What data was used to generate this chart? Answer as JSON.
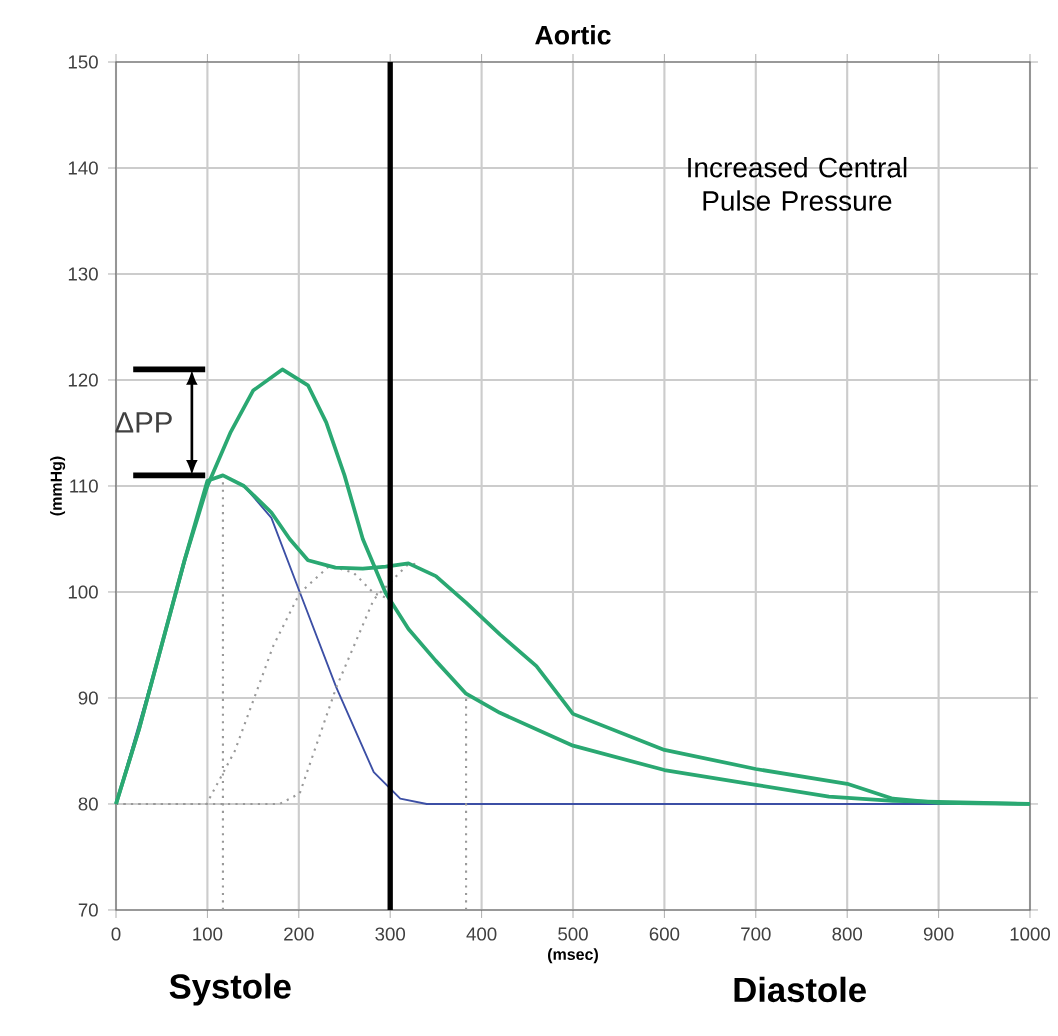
{
  "chart_data": {
    "type": "line",
    "title": "Aortic",
    "xlabel": "(msec)",
    "ylabel": "(mmHg)",
    "xlim": [
      0,
      1000
    ],
    "ylim": [
      70,
      150
    ],
    "xticks": [
      0,
      100,
      200,
      300,
      400,
      500,
      600,
      700,
      800,
      900,
      1000
    ],
    "yticks": [
      70,
      80,
      90,
      100,
      110,
      120,
      130,
      140,
      150
    ],
    "grid": true,
    "series": [
      {
        "color": "#3c4fa5",
        "line_style": "solid",
        "x": [
          0,
          50,
          100,
          117,
          140,
          170,
          201,
          241,
          282,
          311,
          340,
          1000
        ],
        "values": [
          80,
          95,
          110.5,
          111,
          110,
          107,
          100,
          91,
          83,
          80.5,
          80,
          80
        ]
      },
      {
        "color": "#999999",
        "line_style": "dotted",
        "x": [
          0,
          99,
          130,
          172,
          201,
          234,
          260,
          282,
          300
        ],
        "values": [
          80,
          80,
          85,
          94.9,
          99.9,
          102.5,
          101.8,
          99.9,
          99.3
        ]
      },
      {
        "color": "#999999",
        "line_style": "dotted",
        "x": [
          0,
          179,
          201,
          241,
          282,
          318,
          330
        ],
        "values": [
          80,
          80,
          81,
          91,
          99.3,
          102.5,
          102.7
        ]
      },
      {
        "color": "#999999",
        "line_style": "dotted",
        "x": [
          117,
          117
        ],
        "values": [
          70,
          111
        ]
      },
      {
        "color": "#999999",
        "line_style": "dotted",
        "x": [
          383,
          383
        ],
        "values": [
          70,
          90.4
        ]
      },
      {
        "color": "#2aa872",
        "line_style": "solid",
        "x": [
          0,
          25,
          50,
          75,
          100,
          125,
          150,
          182,
          210,
          230,
          250,
          270,
          295,
          320,
          350,
          383,
          420,
          500,
          600,
          700,
          780,
          850,
          1000
        ],
        "values": [
          80,
          87,
          95,
          103,
          110,
          115,
          119,
          121,
          119.5,
          116,
          111,
          105,
          99.9,
          96.5,
          93.5,
          90.4,
          88.6,
          85.5,
          83.2,
          81.8,
          80.7,
          80.3,
          80
        ]
      },
      {
        "color": "#2aa872",
        "line_style": "solid",
        "x": [
          0,
          25,
          50,
          75,
          100,
          117,
          140,
          170,
          190,
          210,
          240,
          270,
          295,
          320,
          350,
          383,
          420,
          460,
          500,
          600,
          700,
          800,
          850,
          900,
          1000
        ],
        "values": [
          80,
          87,
          95,
          103,
          110.5,
          111,
          110,
          107.5,
          105,
          103,
          102.3,
          102.2,
          102.4,
          102.7,
          101.5,
          99,
          96,
          93,
          88.5,
          85.1,
          83.3,
          81.9,
          80.5,
          80.1,
          80
        ]
      }
    ],
    "ref_lines": [
      {
        "axis": "x",
        "value": 300,
        "color": "#000000"
      }
    ],
    "annotations": [
      "Increased Central Pulse Pressure",
      "Systole",
      "Diastole",
      "ΔPP"
    ]
  }
}
